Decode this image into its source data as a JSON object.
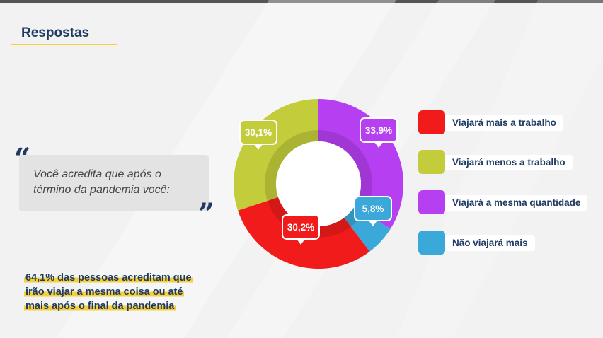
{
  "title": "Respostas",
  "question": {
    "line1": "Você acredita que após o",
    "line2": "término da pandemia você:"
  },
  "highlight": {
    "line1": "64,1% das pessoas acreditam que",
    "line2": "irão viajar a mesma coisa ou até",
    "line3": "mais após o final da pandemia"
  },
  "chart_data": {
    "type": "pie",
    "donut": true,
    "title": "",
    "categories": [
      "Viajará mais a trabalho",
      "Viajará menos a trabalho",
      "Viajará a mesma quantidade",
      "Não viajará mais"
    ],
    "values": [
      30.2,
      30.1,
      33.9,
      5.8
    ],
    "labels": [
      "30,2%",
      "30,1%",
      "33,9%",
      "5,8%"
    ],
    "colors": [
      "#f21b1b",
      "#c3cc3a",
      "#b73ff2",
      "#3aa8d8"
    ],
    "legend_position": "right"
  },
  "legend": [
    {
      "label": "Viajará mais a trabalho",
      "color": "#f21b1b"
    },
    {
      "label": "Viajará menos a trabalho",
      "color": "#c3cc3a"
    },
    {
      "label": "Viajará a mesma quantidade",
      "color": "#b73ff2"
    },
    {
      "label": "Não viajará mais",
      "color": "#3aa8d8"
    }
  ]
}
